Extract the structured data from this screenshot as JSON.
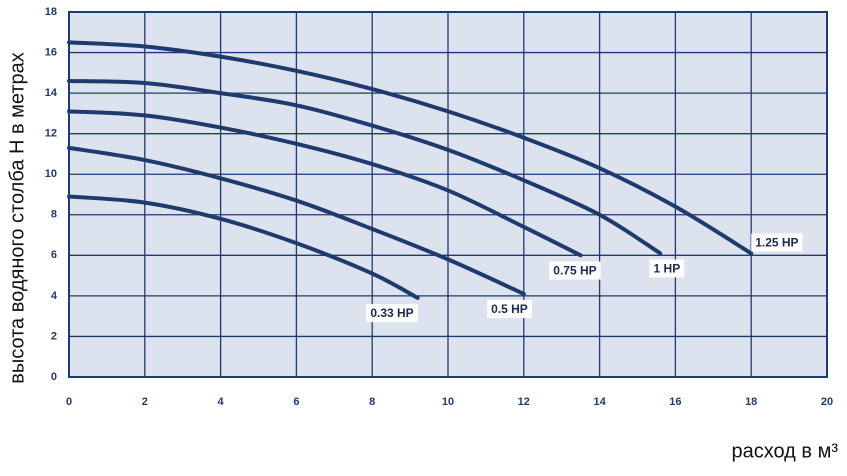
{
  "chart_data": {
    "type": "line",
    "y_label": "высота водяного столба Н в метрах",
    "x_label": "расход в м³",
    "xlim": [
      0,
      20
    ],
    "ylim": [
      0,
      18
    ],
    "xticks": [
      0,
      2,
      4,
      6,
      8,
      10,
      12,
      14,
      16,
      18,
      20
    ],
    "yticks": [
      0,
      2,
      4,
      6,
      8,
      10,
      12,
      14,
      16,
      18
    ],
    "grid": true,
    "series": [
      {
        "name": "0.33 HP",
        "color": "#1f3a6e",
        "x": [
          0,
          2,
          4,
          6,
          8,
          9.2
        ],
        "values": [
          8.9,
          8.6,
          7.8,
          6.6,
          5.1,
          3.9
        ]
      },
      {
        "name": "0.5 HP",
        "color": "#1f3a6e",
        "x": [
          0,
          2,
          4,
          6,
          8,
          10,
          12
        ],
        "values": [
          11.3,
          10.7,
          9.8,
          8.7,
          7.3,
          5.8,
          4.1
        ]
      },
      {
        "name": "0.75 HP",
        "color": "#1f3a6e",
        "x": [
          0,
          2,
          4,
          6,
          8,
          10,
          12,
          13.5
        ],
        "values": [
          13.1,
          12.9,
          12.3,
          11.5,
          10.5,
          9.2,
          7.4,
          6.0
        ]
      },
      {
        "name": "1 HP",
        "color": "#1f3a6e",
        "x": [
          0,
          2,
          4,
          6,
          8,
          10,
          12,
          14,
          15.6
        ],
        "values": [
          14.6,
          14.5,
          14.0,
          13.4,
          12.4,
          11.2,
          9.7,
          8.0,
          6.1
        ]
      },
      {
        "name": "1.25 HP",
        "color": "#1f3a6e",
        "x": [
          0,
          2,
          4,
          6,
          8,
          10,
          12,
          14,
          16,
          18
        ],
        "values": [
          16.5,
          16.3,
          15.8,
          15.1,
          14.2,
          13.1,
          11.8,
          10.3,
          8.4,
          6.1
        ]
      }
    ]
  }
}
